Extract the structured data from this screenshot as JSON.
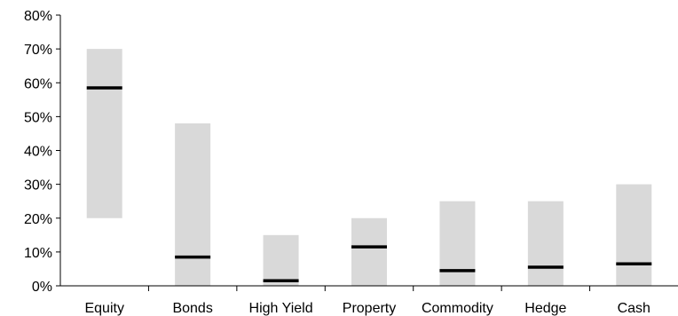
{
  "chart_data": {
    "type": "bar",
    "title": "",
    "xlabel": "",
    "ylabel": "",
    "ylim": [
      0,
      80
    ],
    "y_tick_step": 10,
    "y_tick_labels": [
      "0%",
      "10%",
      "20%",
      "30%",
      "40%",
      "50%",
      "60%",
      "70%",
      "80%"
    ],
    "categories": [
      "Equity",
      "Bonds",
      "High Yield",
      "Property",
      "Commodity",
      "Hedge",
      "Cash"
    ],
    "series": [
      {
        "role": "range_min",
        "values": [
          20,
          0,
          0,
          0,
          0,
          0,
          0
        ]
      },
      {
        "role": "range_max",
        "values": [
          70,
          48,
          15,
          20,
          25,
          25,
          30
        ]
      },
      {
        "role": "marker",
        "values": [
          58.5,
          8.5,
          1.5,
          11.5,
          4.5,
          5.5,
          6.5
        ]
      }
    ],
    "grid": false,
    "legend": "none",
    "colors": {
      "range_bar": "#d9d9d9",
      "marker": "#000000",
      "axis": "#000000"
    }
  }
}
